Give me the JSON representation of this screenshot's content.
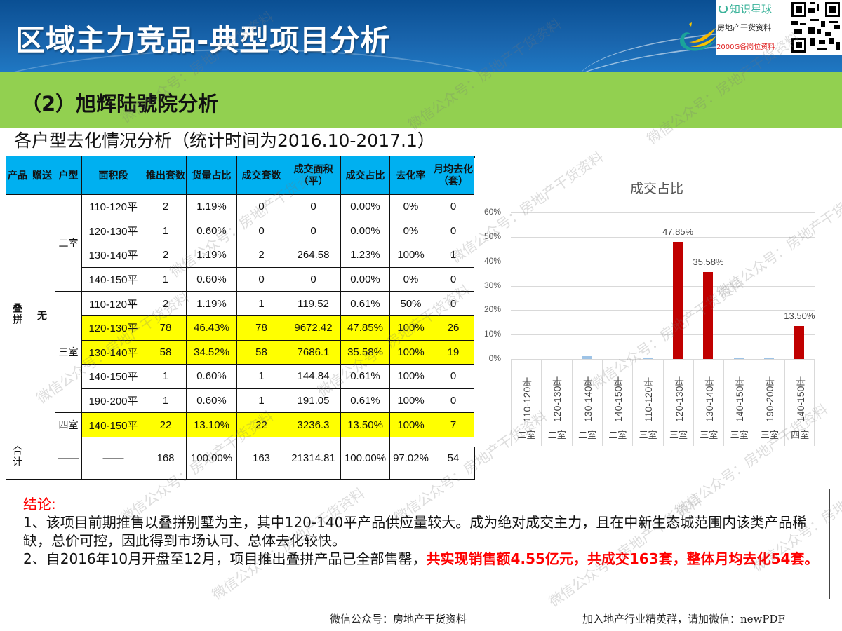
{
  "header": {
    "title": "区域主力竞品-典型项目分析",
    "subtitle": "（2）旭辉陆號院分析",
    "promo": {
      "brand": "知识星球",
      "line1": "房地产干货资料",
      "line2": "2000G各岗位资料"
    }
  },
  "section": {
    "title": "各户型去化情况分析（统计时间为2016.10-2017.1）"
  },
  "table": {
    "headers": [
      "产品",
      "赠送",
      "户型",
      "面积段",
      "推出套数",
      "货量占比",
      "成交套数",
      "成交面积（平）",
      "成交占比",
      "去化率",
      "月均去化（套）"
    ],
    "product": "叠拼",
    "gift": "无",
    "rooms": {
      "two": "二室",
      "three": "三室",
      "four": "四室"
    },
    "rows": [
      {
        "area": "110-120平",
        "launched": "2",
        "supply_pct": "1.19%",
        "sold": "0",
        "sold_area": "0",
        "sold_pct": "0.00%",
        "rate": "0%",
        "monthly": "0"
      },
      {
        "area": "120-130平",
        "launched": "1",
        "supply_pct": "0.60%",
        "sold": "0",
        "sold_area": "0",
        "sold_pct": "0.00%",
        "rate": "0%",
        "monthly": "0"
      },
      {
        "area": "130-140平",
        "launched": "2",
        "supply_pct": "1.19%",
        "sold": "2",
        "sold_area": "264.58",
        "sold_pct": "1.23%",
        "rate": "100%",
        "monthly": "1"
      },
      {
        "area": "140-150平",
        "launched": "1",
        "supply_pct": "0.60%",
        "sold": "0",
        "sold_area": "0",
        "sold_pct": "0.00%",
        "rate": "0%",
        "monthly": "0"
      },
      {
        "area": "110-120平",
        "launched": "2",
        "supply_pct": "1.19%",
        "sold": "1",
        "sold_area": "119.52",
        "sold_pct": "0.61%",
        "rate": "50%",
        "monthly": "0"
      },
      {
        "area": "120-130平",
        "launched": "78",
        "supply_pct": "46.43%",
        "sold": "78",
        "sold_area": "9672.42",
        "sold_pct": "47.85%",
        "rate": "100%",
        "monthly": "26"
      },
      {
        "area": "130-140平",
        "launched": "58",
        "supply_pct": "34.52%",
        "sold": "58",
        "sold_area": "7686.1",
        "sold_pct": "35.58%",
        "rate": "100%",
        "monthly": "19"
      },
      {
        "area": "140-150平",
        "launched": "1",
        "supply_pct": "0.60%",
        "sold": "1",
        "sold_area": "144.84",
        "sold_pct": "0.61%",
        "rate": "100%",
        "monthly": "0"
      },
      {
        "area": "190-200平",
        "launched": "1",
        "supply_pct": "0.60%",
        "sold": "1",
        "sold_area": "191.05",
        "sold_pct": "0.61%",
        "rate": "100%",
        "monthly": "0"
      },
      {
        "area": "140-150平",
        "launched": "22",
        "supply_pct": "13.10%",
        "sold": "22",
        "sold_area": "3236.3",
        "sold_pct": "13.50%",
        "rate": "100%",
        "monthly": "7"
      }
    ],
    "total": {
      "label": "合计",
      "gift": "——",
      "room": "——",
      "area": "——",
      "launched": "168",
      "supply_pct": "100.00%",
      "sold": "163",
      "sold_area": "21314.81",
      "sold_pct": "100.00%",
      "rate": "97.02%",
      "monthly": "54"
    },
    "highlight_color": "#ffff00",
    "header_color": "#00b0f0"
  },
  "chart_data": {
    "type": "bar",
    "title": "成交占比",
    "categories": [
      "110-120平 二室",
      "120-130平 二室",
      "130-140平 二室",
      "140-150平 二室",
      "110-120平 三室",
      "120-130平 三室",
      "130-140平 三室",
      "140-150平 三室",
      "190-200平 三室",
      "140-150平 四室"
    ],
    "category_ranges": [
      "110-120平",
      "120-130平",
      "130-140平",
      "140-150平",
      "110-120平",
      "120-130平",
      "130-140平",
      "140-150平",
      "190-200平",
      "140-150平"
    ],
    "category_rooms": [
      "二室",
      "二室",
      "二室",
      "二室",
      "三室",
      "三室",
      "三室",
      "三室",
      "三室",
      "四室"
    ],
    "values": [
      0.0,
      0.0,
      1.23,
      0.0,
      0.61,
      47.85,
      35.58,
      0.61,
      0.61,
      13.5
    ],
    "data_labels": {
      "5": "47.85%",
      "6": "35.58%",
      "9": "13.50%"
    },
    "highlight_color": "#c00000",
    "minor_color": "#9dc3e6",
    "yticks": [
      "0%",
      "10%",
      "20%",
      "30%",
      "40%",
      "50%",
      "60%"
    ],
    "ylim": [
      0,
      60
    ],
    "xlabel": "",
    "ylabel": "",
    "grid": true,
    "legend": false
  },
  "conclusion": {
    "title": "结论:",
    "p1": "1、该项目前期推售以叠拼别墅为主，其中120-140平产品供应量较大。成为绝对成交主力，且在中新生态城范围内该类产品稀缺，总价可控，因此得到市场认可、总体去化较快。",
    "p2_plain": "2、自2016年10月开盘至12月，项目推出叠拼产品已全部售罄，",
    "p2_red": "共实现销售额4.55亿元，共成交163套，整体月均去化54套。"
  },
  "footer": {
    "left": "微信公众号：房地产干货资料",
    "right": "加入地产行业精英群，请加微信：newPDF"
  },
  "watermark": "微信公众号：房地产干货资料"
}
